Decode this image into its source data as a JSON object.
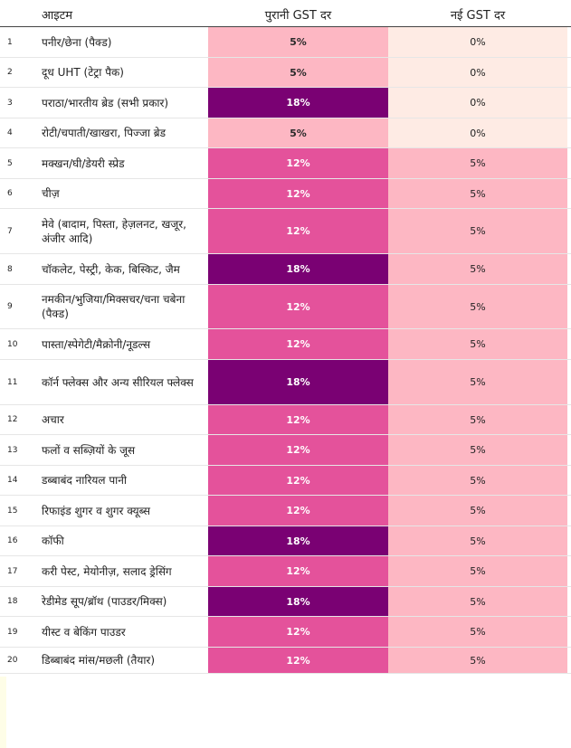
{
  "header": {
    "item": "आइटम",
    "old_rate": "पुरानी GST दर",
    "new_rate": "नई GST दर"
  },
  "rows": [
    {
      "num": "1",
      "item": "पनीर/छेना (पैक्ड)",
      "old": "5%",
      "new": "0%"
    },
    {
      "num": "2",
      "item": "दूध UHT (टेट्रा पैक)",
      "old": "5%",
      "new": "0%"
    },
    {
      "num": "3",
      "item": "पराठा/भारतीय ब्रेड (सभी प्रकार)",
      "old": "18%",
      "new": "0%"
    },
    {
      "num": "4",
      "item": "रोटी/चपाती/खाखरा, पिज्जा ब्रेड",
      "old": "5%",
      "new": "0%"
    },
    {
      "num": "5",
      "item": "मक्खन/घी/डेयरी स्प्रेड",
      "old": "12%",
      "new": "5%"
    },
    {
      "num": "6",
      "item": "चीज़",
      "old": "12%",
      "new": "5%"
    },
    {
      "num": "7",
      "item": "मेवे (बादाम, पिस्ता, हेज़लनट, खजूर, अंजीर आदि)",
      "old": "12%",
      "new": "5%"
    },
    {
      "num": "8",
      "item": "चॉकलेट, पेस्ट्री, केक, बिस्किट, जैम",
      "old": "18%",
      "new": "5%"
    },
    {
      "num": "9",
      "item": "नमकीन/भुजिया/मिक्सचर/चना चबेना (पैक्ड)",
      "old": "12%",
      "new": "5%"
    },
    {
      "num": "10",
      "item": "पास्ता/स्पेगेटी/मैक्रोनी/नूडल्स",
      "old": "12%",
      "new": "5%"
    },
    {
      "num": "11",
      "item": "कॉर्न फ्लेक्स और अन्य सीरियल फ्लेक्स",
      "old": "18%",
      "new": "5%"
    },
    {
      "num": "12",
      "item": "अचार",
      "old": "12%",
      "new": "5%"
    },
    {
      "num": "13",
      "item": "फलों व सब्ज़ियों के जूस",
      "old": "12%",
      "new": "5%"
    },
    {
      "num": "14",
      "item": "डब्बाबंद नारियल पानी",
      "old": "12%",
      "new": "5%"
    },
    {
      "num": "15",
      "item": "रिफाइंड शुगर व शुगर क्यूब्स",
      "old": "12%",
      "new": "5%"
    },
    {
      "num": "16",
      "item": "कॉफी",
      "old": "18%",
      "new": "5%"
    },
    {
      "num": "17",
      "item": "करी पेस्ट, मेयोनीज़, सलाद ड्रेसिंग",
      "old": "12%",
      "new": "5%"
    },
    {
      "num": "18",
      "item": "रेडीमेड सूप/ब्रॉथ (पाउडर/मिक्स)",
      "old": "18%",
      "new": "5%"
    },
    {
      "num": "19",
      "item": "यीस्ट व बेकिंग पाउडर",
      "old": "12%",
      "new": "5%"
    },
    {
      "num": "20",
      "item": "डिब्बाबंद मांस/मछली (तैयार)",
      "old": "12%",
      "new": "5%"
    }
  ],
  "colors": {
    "rate_5": "#fdb7c3",
    "rate_12": "#e4529b",
    "rate_18": "#7a0173",
    "new_0": "#feebe4",
    "new_5": "#fdb7c3"
  }
}
